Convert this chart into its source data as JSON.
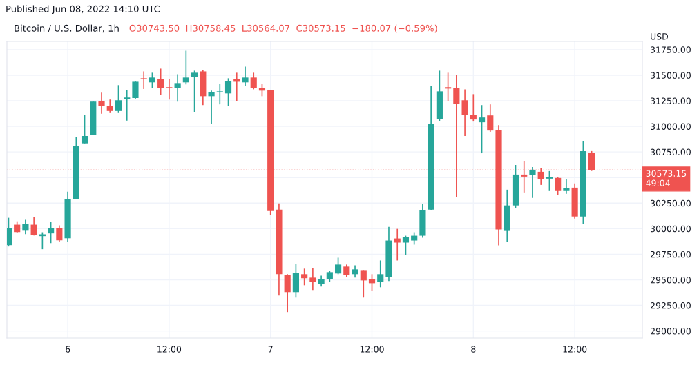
{
  "chart_data": {
    "type": "candlestick",
    "title": "Bitcoin / U.S. Dollar, 1h",
    "subtitle": "O30743.50  H30758.45  L30564.07  C30573.15  −180.07 (−0.59%)",
    "ylabel": "USD",
    "annotations": [
      "Published Jun 08, 2022 14:10 UTC"
    ],
    "x": [
      "2022-06-05T17:00",
      "2022-06-05T18:00",
      "2022-06-05T19:00",
      "2022-06-05T20:00",
      "2022-06-05T21:00",
      "2022-06-05T22:00",
      "2022-06-05T23:00",
      "2022-06-06T00:00",
      "2022-06-06T01:00",
      "2022-06-06T02:00",
      "2022-06-06T03:00",
      "2022-06-06T04:00",
      "2022-06-06T05:00",
      "2022-06-06T06:00",
      "2022-06-06T07:00",
      "2022-06-06T08:00",
      "2022-06-06T09:00",
      "2022-06-06T10:00",
      "2022-06-06T11:00",
      "2022-06-06T12:00",
      "2022-06-06T13:00",
      "2022-06-06T14:00",
      "2022-06-06T15:00",
      "2022-06-06T16:00",
      "2022-06-06T17:00",
      "2022-06-06T18:00",
      "2022-06-06T19:00",
      "2022-06-06T20:00",
      "2022-06-06T21:00",
      "2022-06-06T22:00",
      "2022-06-06T23:00",
      "2022-06-07T00:00",
      "2022-06-07T01:00",
      "2022-06-07T02:00",
      "2022-06-07T03:00",
      "2022-06-07T04:00",
      "2022-06-07T05:00",
      "2022-06-07T06:00",
      "2022-06-07T07:00",
      "2022-06-07T08:00",
      "2022-06-07T09:00",
      "2022-06-07T10:00",
      "2022-06-07T11:00",
      "2022-06-07T12:00",
      "2022-06-07T13:00",
      "2022-06-07T14:00",
      "2022-06-07T15:00",
      "2022-06-07T16:00",
      "2022-06-07T17:00",
      "2022-06-07T18:00",
      "2022-06-07T19:00",
      "2022-06-07T20:00",
      "2022-06-07T21:00",
      "2022-06-07T22:00",
      "2022-06-07T23:00",
      "2022-06-08T00:00",
      "2022-06-08T01:00",
      "2022-06-08T02:00",
      "2022-06-08T03:00",
      "2022-06-08T04:00",
      "2022-06-08T05:00",
      "2022-06-08T06:00",
      "2022-06-08T07:00",
      "2022-06-08T08:00",
      "2022-06-08T09:00",
      "2022-06-08T10:00",
      "2022-06-08T11:00",
      "2022-06-08T12:00",
      "2022-06-08T13:00",
      "2022-06-08T14:00"
    ],
    "ohlc": [
      [
        29839,
        30106,
        29826,
        30005
      ],
      [
        30039,
        30072,
        29960,
        29967
      ],
      [
        29980,
        30086,
        29947,
        30045
      ],
      [
        30039,
        30113,
        29933,
        29940
      ],
      [
        29927,
        29965,
        29799,
        29945
      ],
      [
        29954,
        30066,
        29859,
        30005
      ],
      [
        30005,
        30032,
        29873,
        29886
      ],
      [
        29906,
        30361,
        29873,
        30287
      ],
      [
        30290,
        30899,
        30290,
        30811
      ],
      [
        30834,
        31114,
        30834,
        30906
      ],
      [
        30914,
        31248,
        30914,
        31242
      ],
      [
        31248,
        31329,
        31123,
        31197
      ],
      [
        31201,
        31262,
        31130,
        31150
      ],
      [
        31150,
        31403,
        31130,
        31255
      ],
      [
        31264,
        31356,
        31056,
        31282
      ],
      [
        31277,
        31443,
        31264,
        31436
      ],
      [
        31470,
        31537,
        31365,
        31459
      ],
      [
        31430,
        31524,
        31376,
        31477
      ],
      [
        31463,
        31564,
        31309,
        31376
      ],
      [
        31383,
        31463,
        31262,
        31378
      ],
      [
        31376,
        31510,
        31242,
        31423
      ],
      [
        31430,
        31739,
        31410,
        31477
      ],
      [
        31483,
        31544,
        31141,
        31524
      ],
      [
        31537,
        31551,
        31208,
        31295
      ],
      [
        31295,
        31349,
        31020,
        31336
      ],
      [
        31333,
        31416,
        31215,
        31342
      ],
      [
        31322,
        31470,
        31201,
        31443
      ],
      [
        31463,
        31524,
        31248,
        31436
      ],
      [
        31430,
        31584,
        31396,
        31477
      ],
      [
        31477,
        31524,
        31362,
        31376
      ],
      [
        31376,
        31416,
        31295,
        31349
      ],
      [
        31356,
        31356,
        30133,
        30173
      ],
      [
        30186,
        30247,
        29346,
        29555
      ],
      [
        29548,
        29555,
        29185,
        29380
      ],
      [
        29380,
        29656,
        29326,
        29568
      ],
      [
        29555,
        29609,
        29447,
        29515
      ],
      [
        29521,
        29615,
        29400,
        29481
      ],
      [
        29461,
        29541,
        29434,
        29508
      ],
      [
        29508,
        29588,
        29481,
        29575
      ],
      [
        29562,
        29716,
        29555,
        29649
      ],
      [
        29629,
        29649,
        29528,
        29548
      ],
      [
        29555,
        29642,
        29521,
        29602
      ],
      [
        29595,
        29595,
        29326,
        29494
      ],
      [
        29508,
        29555,
        29393,
        29467
      ],
      [
        29481,
        29689,
        29427,
        29555
      ],
      [
        29528,
        30018,
        29488,
        29884
      ],
      [
        29904,
        29998,
        29689,
        29864
      ],
      [
        29864,
        29931,
        29743,
        29918
      ],
      [
        29884,
        29965,
        29844,
        29931
      ],
      [
        29931,
        30240,
        29911,
        30180
      ],
      [
        30186,
        31396,
        30180,
        31026
      ],
      [
        31074,
        31544,
        31053,
        31342
      ],
      [
        31383,
        31524,
        31248,
        31369
      ],
      [
        31376,
        31504,
        30307,
        31221
      ],
      [
        31255,
        31362,
        30906,
        31114
      ],
      [
        31114,
        31315,
        31047,
        31067
      ],
      [
        31040,
        31208,
        30737,
        31087
      ],
      [
        31107,
        31215,
        30946,
        30959
      ],
      [
        30966,
        31013,
        29837,
        29992
      ],
      [
        29978,
        30381,
        29871,
        30227
      ],
      [
        30227,
        30623,
        30200,
        30529
      ],
      [
        30529,
        30657,
        30354,
        30509
      ],
      [
        30522,
        30603,
        30301,
        30576
      ],
      [
        30556,
        30596,
        30428,
        30482
      ],
      [
        30489,
        30563,
        30368,
        30502
      ],
      [
        30496,
        30502,
        30328,
        30368
      ],
      [
        30368,
        30482,
        30341,
        30395
      ],
      [
        30401,
        30442,
        30099,
        30119
      ],
      [
        30119,
        30852,
        30045,
        30758
      ],
      [
        30743.5,
        30758.45,
        30564.07,
        30573.15
      ]
    ],
    "colors": [
      "#26a69a",
      "#ef5350",
      "#26a69a",
      "#ef5350",
      "#26a69a",
      "#26a69a",
      "#ef5350",
      "#26a69a",
      "#26a69a",
      "#26a69a",
      "#26a69a",
      "#ef5350",
      "#ef5350",
      "#26a69a",
      "#26a69a",
      "#26a69a",
      "#ef5350",
      "#26a69a",
      "#ef5350",
      "#ef5350",
      "#26a69a",
      "#26a69a",
      "#26a69a",
      "#ef5350",
      "#26a69a",
      "#26a69a",
      "#26a69a",
      "#ef5350",
      "#26a69a",
      "#ef5350",
      "#ef5350",
      "#ef5350",
      "#ef5350",
      "#ef5350",
      "#26a69a",
      "#ef5350",
      "#ef5350",
      "#26a69a",
      "#26a69a",
      "#26a69a",
      "#ef5350",
      "#26a69a",
      "#ef5350",
      "#ef5350",
      "#26a69a",
      "#26a69a",
      "#ef5350",
      "#26a69a",
      "#26a69a",
      "#26a69a",
      "#26a69a",
      "#26a69a",
      "#ef5350",
      "#ef5350",
      "#ef5350",
      "#ef5350",
      "#26a69a",
      "#ef5350",
      "#ef5350",
      "#26a69a",
      "#26a69a",
      "#ef5350",
      "#26a69a",
      "#ef5350",
      "#26a69a",
      "#ef5350",
      "#26a69a",
      "#ef5350",
      "#26a69a",
      "#ef5350"
    ],
    "xlim": [
      "2022-06-05T16:48",
      "2022-06-08T20:00"
    ],
    "xticks": [
      {
        "value": "2022-06-06T00:00",
        "label": "6"
      },
      {
        "value": "2022-06-06T12:00",
        "label": "12:00"
      },
      {
        "value": "2022-06-07T00:00",
        "label": "7"
      },
      {
        "value": "2022-06-07T12:00",
        "label": "12:00"
      },
      {
        "value": "2022-06-08T00:00",
        "label": "8"
      },
      {
        "value": "2022-06-08T12:00",
        "label": "12:00"
      }
    ],
    "ylim": [
      28930,
      31830
    ],
    "yticks": [
      {
        "value": 29000,
        "label": "29000.00"
      },
      {
        "value": 29250,
        "label": "29250.00"
      },
      {
        "value": 29500,
        "label": "29500.00"
      },
      {
        "value": 29750,
        "label": "29750.00"
      },
      {
        "value": 30000,
        "label": "30000.00"
      },
      {
        "value": 30250,
        "label": "30250.00"
      },
      {
        "value": 30500,
        "label": null
      },
      {
        "value": 30750,
        "label": "30750.00"
      },
      {
        "value": 31000,
        "label": "31000.00"
      },
      {
        "value": 31250,
        "label": "31250.00"
      },
      {
        "value": 31500,
        "label": "31500.00"
      },
      {
        "value": 31750,
        "label": "31750.00"
      }
    ],
    "ref_lines": [
      {
        "axis": "y",
        "value": 30573.15,
        "label": "30573.15\n49:04",
        "color": "#ef5350",
        "line_style": "dotted"
      }
    ],
    "grid": true,
    "legend": false
  }
}
